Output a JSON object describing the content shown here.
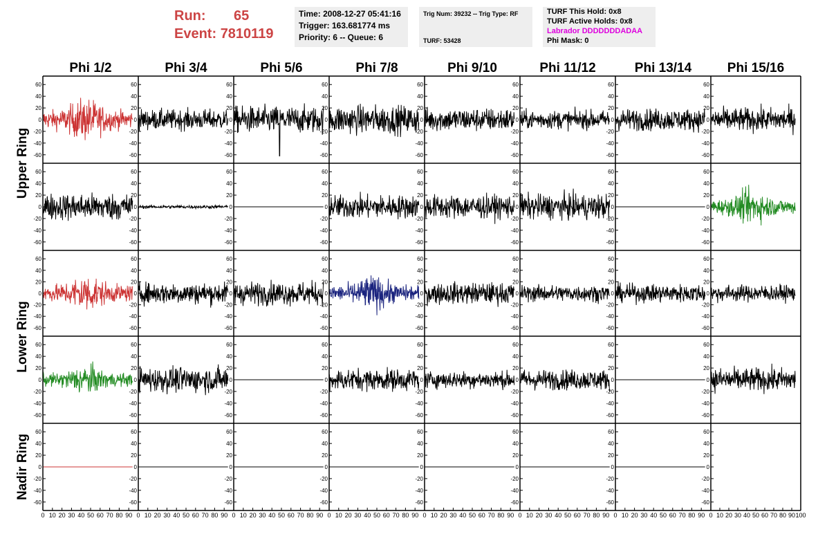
{
  "header": {
    "run_label": "Run:",
    "run_value": "65",
    "event_label": "Event:",
    "event_value": "7810119",
    "time": "Time: 2008-12-27 05:41:16",
    "trigger": "Trigger: 163.681774 ms",
    "priority": "Priority: 6 -- Queue: 6",
    "trig_num": "Trig Num: 39232 -- Trig Type: RF",
    "turf": "TURF: 53428",
    "turf_this_hold": "TURF This Hold: 0x8",
    "turf_active_holds": "TURF Active Holds: 0x8",
    "labrador": "Labrador DDDDDDDADAA",
    "phi_mask": "Phi Mask: 0"
  },
  "colors": {
    "red": "#cc3333",
    "green": "#228b22",
    "blue": "#1a237e",
    "black": "#000000",
    "header_text": "#cc4444",
    "labrador": "#dd00dd"
  },
  "chart_data": {
    "type": "line",
    "columns": [
      "Phi 1/2",
      "Phi 3/4",
      "Phi 5/6",
      "Phi 7/8",
      "Phi 9/10",
      "Phi 11/12",
      "Phi 13/14",
      "Phi 15/16"
    ],
    "ring_labels": [
      "Upper Ring",
      "Lower Ring",
      "Nadir Ring"
    ],
    "rows_per_ring": [
      2,
      2,
      1
    ],
    "xlim": [
      0,
      100
    ],
    "ylim": [
      -65,
      65
    ],
    "yticks": [
      -60,
      -40,
      -20,
      0,
      20,
      40,
      60
    ],
    "xticks": [
      0,
      10,
      20,
      30,
      40,
      50,
      60,
      70,
      80,
      90,
      100
    ],
    "waveform_samples": 260,
    "waveform_x_range": [
      0,
      94
    ],
    "cells": [
      [
        {
          "amp": 20,
          "color": "red",
          "env": true
        },
        {
          "amp": 12,
          "color": "black"
        },
        {
          "amp": 16,
          "color": "black",
          "spike": 48
        },
        {
          "amp": 17,
          "color": "black"
        },
        {
          "amp": 14,
          "color": "black"
        },
        {
          "amp": 11,
          "color": "black"
        },
        {
          "amp": 13,
          "color": "black"
        },
        {
          "amp": 14,
          "color": "black"
        }
      ],
      [
        {
          "amp": 16,
          "color": "black"
        },
        {
          "amp": 2,
          "color": "black"
        },
        {
          "amp": 0,
          "color": "black"
        },
        {
          "amp": 14,
          "color": "black"
        },
        {
          "amp": 14,
          "color": "black"
        },
        {
          "amp": 15,
          "color": "black"
        },
        {
          "amp": 0,
          "color": "black"
        },
        {
          "amp": 16,
          "color": "green",
          "env": true
        }
      ],
      [
        {
          "amp": 18,
          "color": "red",
          "env": true
        },
        {
          "amp": 13,
          "color": "black"
        },
        {
          "amp": 14,
          "color": "black"
        },
        {
          "amp": 17,
          "color": "blue",
          "env": true
        },
        {
          "amp": 13,
          "color": "black"
        },
        {
          "amp": 10,
          "color": "black"
        },
        {
          "amp": 11,
          "color": "black"
        },
        {
          "amp": 10,
          "color": "black"
        }
      ],
      [
        {
          "amp": 14,
          "color": "green",
          "env": true
        },
        {
          "amp": 15,
          "color": "black"
        },
        {
          "amp": 0,
          "color": "black"
        },
        {
          "amp": 13,
          "color": "black"
        },
        {
          "amp": 10,
          "color": "black"
        },
        {
          "amp": 12,
          "color": "black"
        },
        {
          "amp": 0,
          "color": "black"
        },
        {
          "amp": 14,
          "color": "black"
        }
      ],
      [
        {
          "amp": 0,
          "color": "red"
        },
        {
          "amp": 0,
          "color": "black"
        },
        {
          "amp": 0,
          "color": "black"
        },
        {
          "amp": 0,
          "color": "black"
        },
        {
          "amp": 0,
          "color": "black"
        },
        {
          "amp": 0,
          "color": "black"
        },
        {
          "amp": 0,
          "color": "black"
        },
        {
          "amp": null,
          "color": "black"
        }
      ]
    ]
  }
}
